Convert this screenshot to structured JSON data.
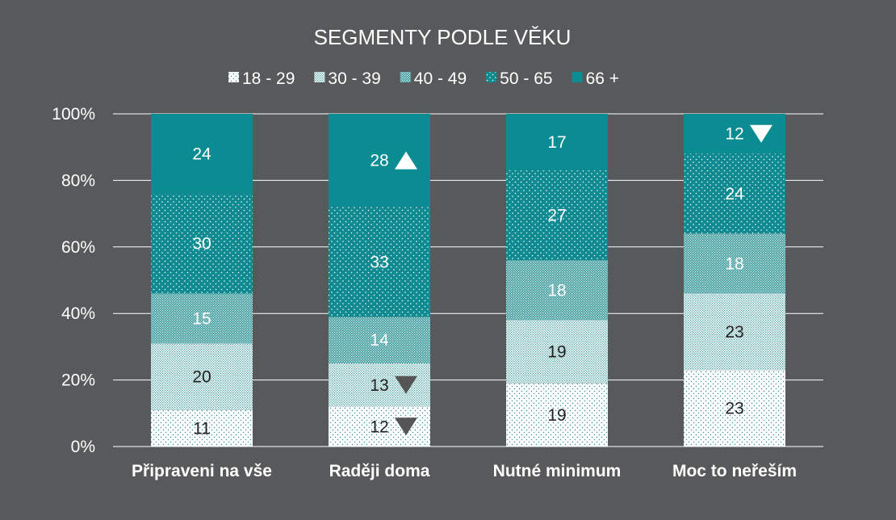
{
  "chart_data": {
    "type": "bar",
    "stacked": true,
    "title": "SEGMENTY PODLE VĚKU",
    "categories": [
      "Připraveni na vše",
      "Raději doma",
      "Nutné minimum",
      "Moc to neřeším"
    ],
    "series": [
      {
        "name": "18 - 29",
        "values": [
          11,
          12,
          19,
          23
        ],
        "color": "#ffffff",
        "pattern": "dots-white",
        "label_color": "#222222"
      },
      {
        "name": "30 - 39",
        "values": [
          20,
          13,
          19,
          23
        ],
        "color": "#a9d3d5",
        "pattern": "dense-light",
        "label_color": "#222222"
      },
      {
        "name": "40 - 49",
        "values": [
          15,
          14,
          18,
          18
        ],
        "color": "#4fa6aa",
        "pattern": "dense-mid",
        "label_color": "#ffffff"
      },
      {
        "name": "50 - 65",
        "values": [
          30,
          33,
          27,
          24
        ],
        "color": "#0f8c92",
        "pattern": "dots-teal",
        "label_color": "#ffffff"
      },
      {
        "name": "66 +",
        "values": [
          24,
          28,
          17,
          12
        ],
        "color": "#0a8c92",
        "pattern": "solid",
        "label_color": "#ffffff"
      }
    ],
    "markers": [
      {
        "category": "Raději doma",
        "series": "66 +",
        "direction": "up",
        "color": "#ffffff"
      },
      {
        "category": "Raději doma",
        "series": "30 - 39",
        "direction": "down",
        "color": "#555555"
      },
      {
        "category": "Raději doma",
        "series": "18 - 29",
        "direction": "down",
        "color": "#555555"
      },
      {
        "category": "Moc to neřeším",
        "series": "66 +",
        "direction": "down",
        "color": "#ffffff"
      }
    ],
    "yticks": [
      "0%",
      "20%",
      "40%",
      "60%",
      "80%",
      "100%"
    ],
    "ylim": [
      0,
      100
    ],
    "grid": true,
    "legend_position": "top"
  },
  "colors": {
    "background": "#58595b",
    "gridline": "#ffffff",
    "text": "#ffffff"
  }
}
